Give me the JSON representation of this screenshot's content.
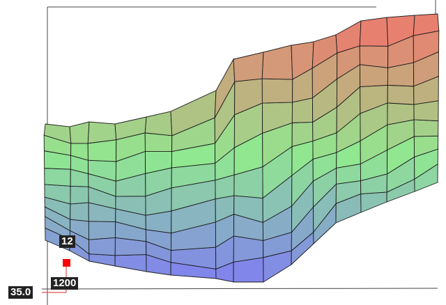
{
  "chart_data": {
    "type": "surface",
    "title": "",
    "levels": 9,
    "columns": 16,
    "z_top": [
      262,
      258,
      265,
      262,
      272,
      280,
      310,
      355,
      365,
      375,
      380,
      390,
      410,
      415,
      418,
      420
    ],
    "z_bottom": [
      95,
      80,
      65,
      58,
      50,
      45,
      40,
      35,
      35,
      60,
      90,
      120,
      135,
      150,
      165,
      178
    ],
    "colors": {
      "low": "#8080f0",
      "mid": "#90e890",
      "high": "#e88070"
    },
    "cursor": {
      "value_label": "12",
      "x_label": "1200",
      "y_label": "35.0",
      "marker_color": "#ff0000"
    }
  }
}
